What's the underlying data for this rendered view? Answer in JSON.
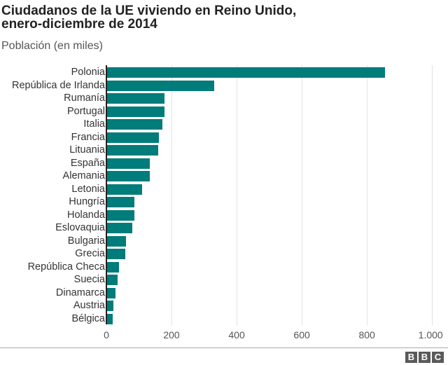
{
  "title_line1": "Ciudadanos de la UE viviendo en Reino Unido,",
  "title_line2": "enero-diciembre de 2014",
  "subtitle": "Población (en miles)",
  "ticks": [
    "0",
    "200",
    "400",
    "600",
    "800",
    "1.000"
  ],
  "logo": [
    "B",
    "B",
    "C"
  ],
  "bar_color": "#007c7a",
  "chart_data": {
    "type": "bar",
    "orientation": "horizontal",
    "title": "Ciudadanos de la UE viviendo en Reino Unido, enero-diciembre de 2014",
    "subtitle": "Población (en miles)",
    "xlabel": "",
    "ylabel": "",
    "xlim": [
      0,
      1000
    ],
    "xticks": [
      0,
      200,
      400,
      600,
      800,
      1000
    ],
    "grid": true,
    "categories": [
      "Polonia",
      "República de Irlanda",
      "Rumanía",
      "Portugal",
      "Italia",
      "Francia",
      "Lituania",
      "España",
      "Alemania",
      "Letonia",
      "Hungría",
      "Holanda",
      "Eslovaquia",
      "Bulgaria",
      "Grecia",
      "República Checa",
      "Suecia",
      "Dinamarca",
      "Austria",
      "Bélgica"
    ],
    "values": [
      855,
      331,
      178,
      178,
      171,
      162,
      158,
      133,
      133,
      109,
      87,
      85,
      80,
      61,
      57,
      39,
      34,
      28,
      22,
      19
    ]
  }
}
